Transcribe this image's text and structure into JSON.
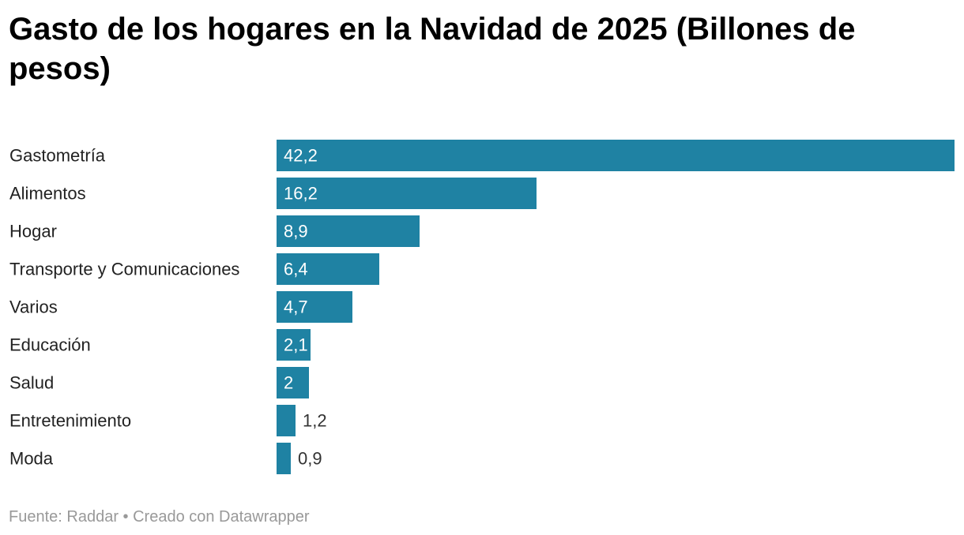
{
  "chart_data": {
    "type": "bar",
    "orientation": "horizontal",
    "title": "Gasto de los hogares en la Navidad de 2025 (Billones de pesos)",
    "categories": [
      "Gastometría",
      "Alimentos",
      "Hogar",
      "Transporte y Comunicaciones",
      "Varios",
      "Educación",
      "Salud",
      "Entretenimiento",
      "Moda"
    ],
    "values": [
      42.2,
      16.2,
      8.9,
      6.4,
      4.7,
      2.1,
      2,
      1.2,
      0.9
    ],
    "value_labels": [
      "42,2",
      "16,2",
      "8,9",
      "6,4",
      "4,7",
      "2,1",
      "2",
      "1,2",
      "0,9"
    ],
    "xlim": [
      0,
      42.2
    ],
    "grid": false,
    "legend": "none",
    "bar_color": "#1f82a3",
    "label_color_inside": "#ffffff",
    "label_color_outside": "#333333",
    "category_label_color": "#222222"
  },
  "footer": {
    "source_text": "Fuente: Raddar • Creado con Datawrapper"
  }
}
